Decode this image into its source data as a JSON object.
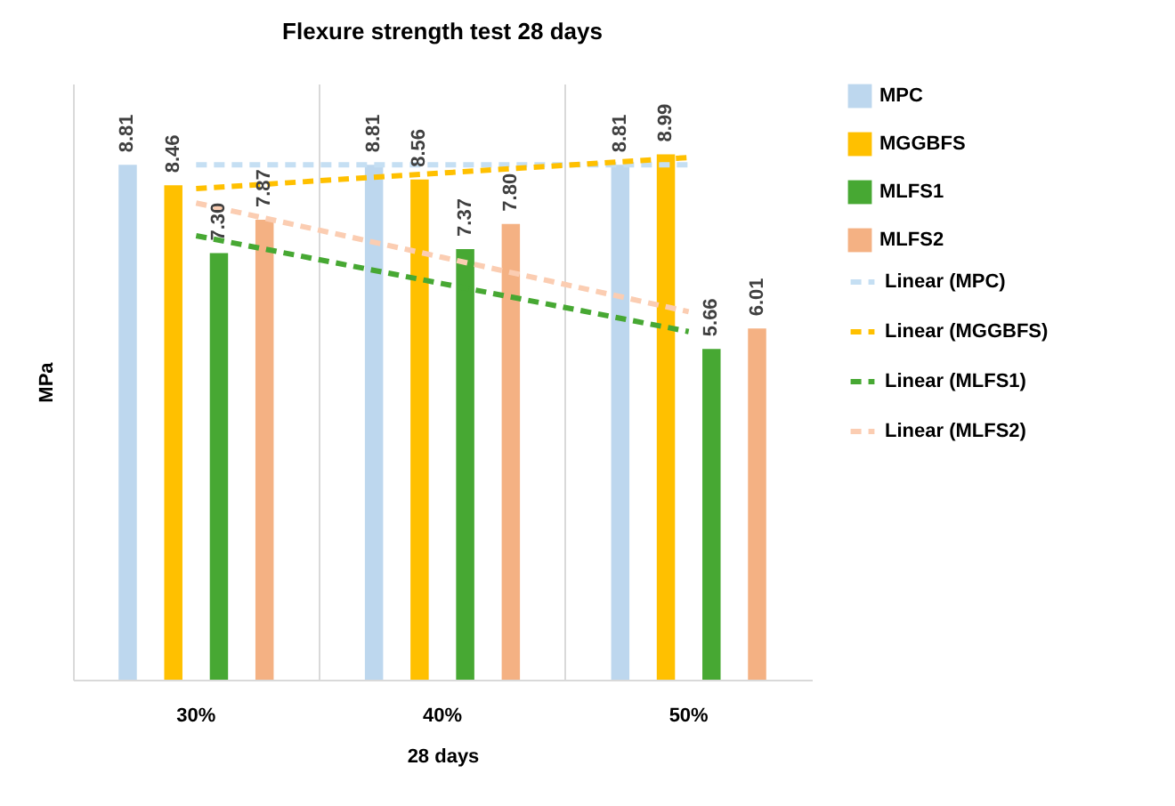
{
  "chart_data": {
    "type": "bar",
    "title": "Flexure strength test 28 days",
    "xlabel": "28 days",
    "ylabel": "MPa",
    "categories": [
      "30%",
      "40%",
      "50%"
    ],
    "ylim": [
      0,
      10.2
    ],
    "tick_labels": "x",
    "grid": "x",
    "legend": "right",
    "series": [
      {
        "name": "MPC",
        "color": "#bdd7ee",
        "values": [
          8.81,
          8.81,
          8.81
        ],
        "value_labels": [
          "8.81",
          "8.81",
          "8.81"
        ]
      },
      {
        "name": "MGGBFS",
        "color": "#ffc000",
        "values": [
          8.46,
          8.56,
          8.99
        ],
        "value_labels": [
          "8.46",
          "8.56",
          "8.99"
        ]
      },
      {
        "name": "MLFS1",
        "color": "#47a833",
        "values": [
          7.3,
          7.37,
          5.66
        ],
        "value_labels": [
          "7.30",
          "7.37",
          "5.66"
        ]
      },
      {
        "name": "MLFS2",
        "color": "#f4b183",
        "values": [
          7.87,
          7.8,
          6.01
        ],
        "value_labels": [
          "7.87",
          "7.80",
          "6.01"
        ]
      },
      {
        "name": "Linear (MPC)",
        "type": "line",
        "line_style": "dashed",
        "color": "#c5dff3",
        "values": [
          8.81,
          8.81,
          8.81
        ]
      },
      {
        "name": "Linear (MGGBFS)",
        "type": "line",
        "line_style": "dashed",
        "color": "#ffc000",
        "values": [
          8.405,
          8.67,
          8.935
        ]
      },
      {
        "name": "Linear (MLFS1)",
        "type": "line",
        "line_style": "dashed",
        "color": "#47a833",
        "values": [
          7.597,
          6.777,
          5.957
        ]
      },
      {
        "name": "Linear (MLFS2)",
        "type": "line",
        "line_style": "dashed",
        "color": "#fbcdb2",
        "values": [
          8.157,
          7.227,
          6.297
        ]
      }
    ]
  }
}
